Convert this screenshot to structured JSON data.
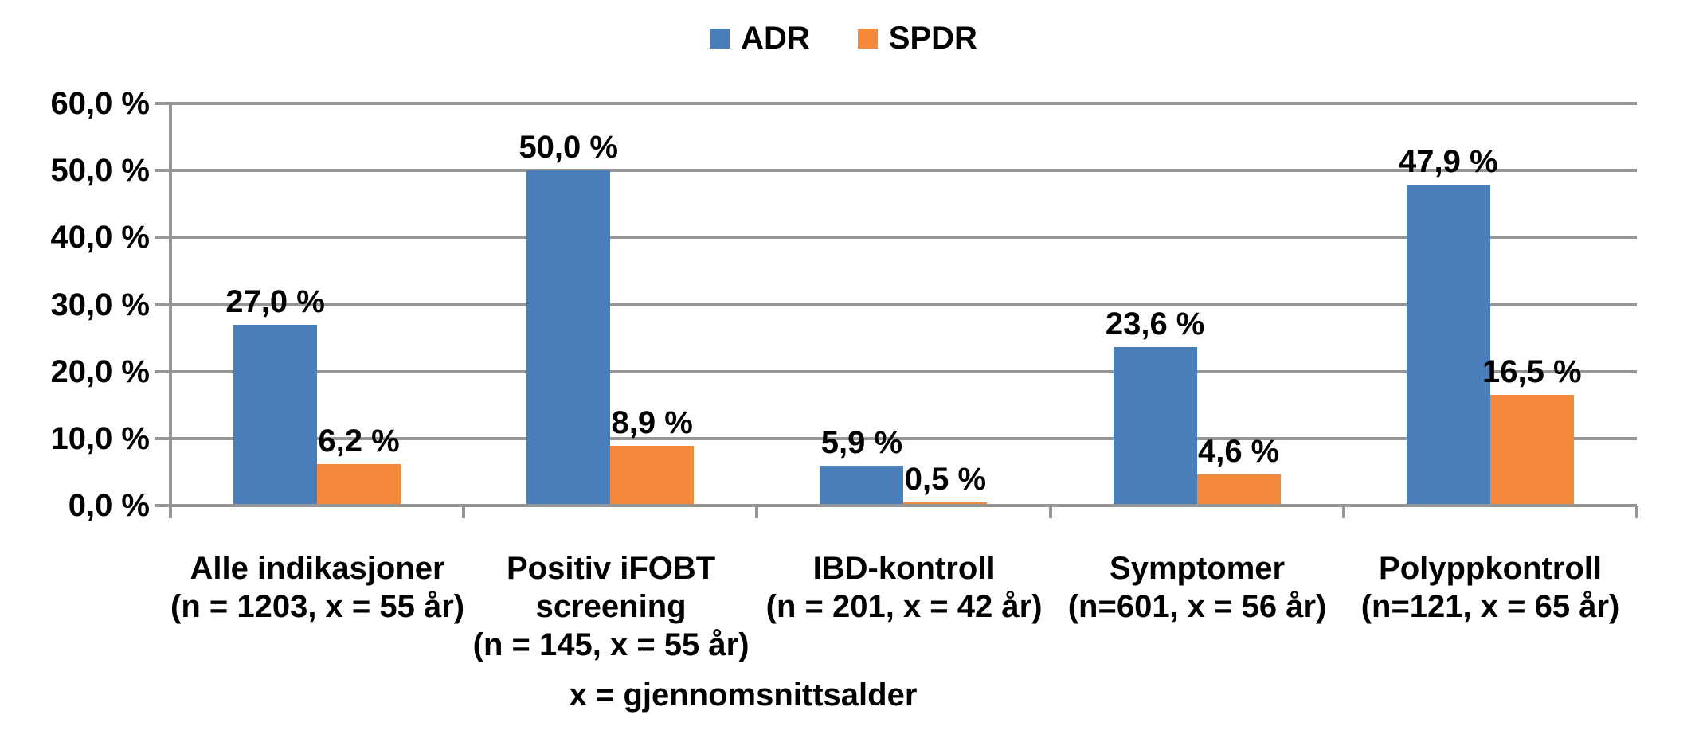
{
  "chart_data": {
    "type": "bar",
    "title": "",
    "legend_position": "top",
    "grid": true,
    "background_color": "#FFFFFF",
    "gridline_color": "#969696",
    "categories": [
      {
        "lines": [
          "Alle indikasjoner",
          "(n = 1203, x = 55 år)"
        ]
      },
      {
        "lines": [
          "Positiv iFOBT",
          "screening",
          "(n = 145, x = 55 år)"
        ]
      },
      {
        "lines": [
          "IBD-kontroll",
          "(n = 201, x = 42 år)"
        ]
      },
      {
        "lines": [
          "Symptomer",
          "(n=601, x = 56 år)"
        ]
      },
      {
        "lines": [
          "Polyppkontroll",
          "(n=121, x = 65 år)"
        ]
      }
    ],
    "series": [
      {
        "name": "ADR",
        "color": "#4A7EBB",
        "values": [
          27.0,
          50.0,
          5.9,
          23.6,
          47.9
        ],
        "labels": [
          "27,0 %",
          "50,0 %",
          "5,9 %",
          "23,6 %",
          "47,9 %"
        ]
      },
      {
        "name": "SPDR",
        "color": "#F5893B",
        "values": [
          6.2,
          8.9,
          0.5,
          4.6,
          16.5
        ],
        "labels": [
          "6,2 %",
          "8,9 %",
          "0,5 %",
          "4,6 %",
          "16,5 %"
        ]
      }
    ],
    "y_axis": {
      "min": 0,
      "max": 60,
      "step": 10,
      "tick_labels_top_down": [
        "60,0 %",
        "50,0 %",
        "40,0 %",
        "30,0 %",
        "20,0 %",
        "10,0 %",
        "0,0 %"
      ]
    },
    "annotation": "x = gjennomsnittsalder"
  }
}
